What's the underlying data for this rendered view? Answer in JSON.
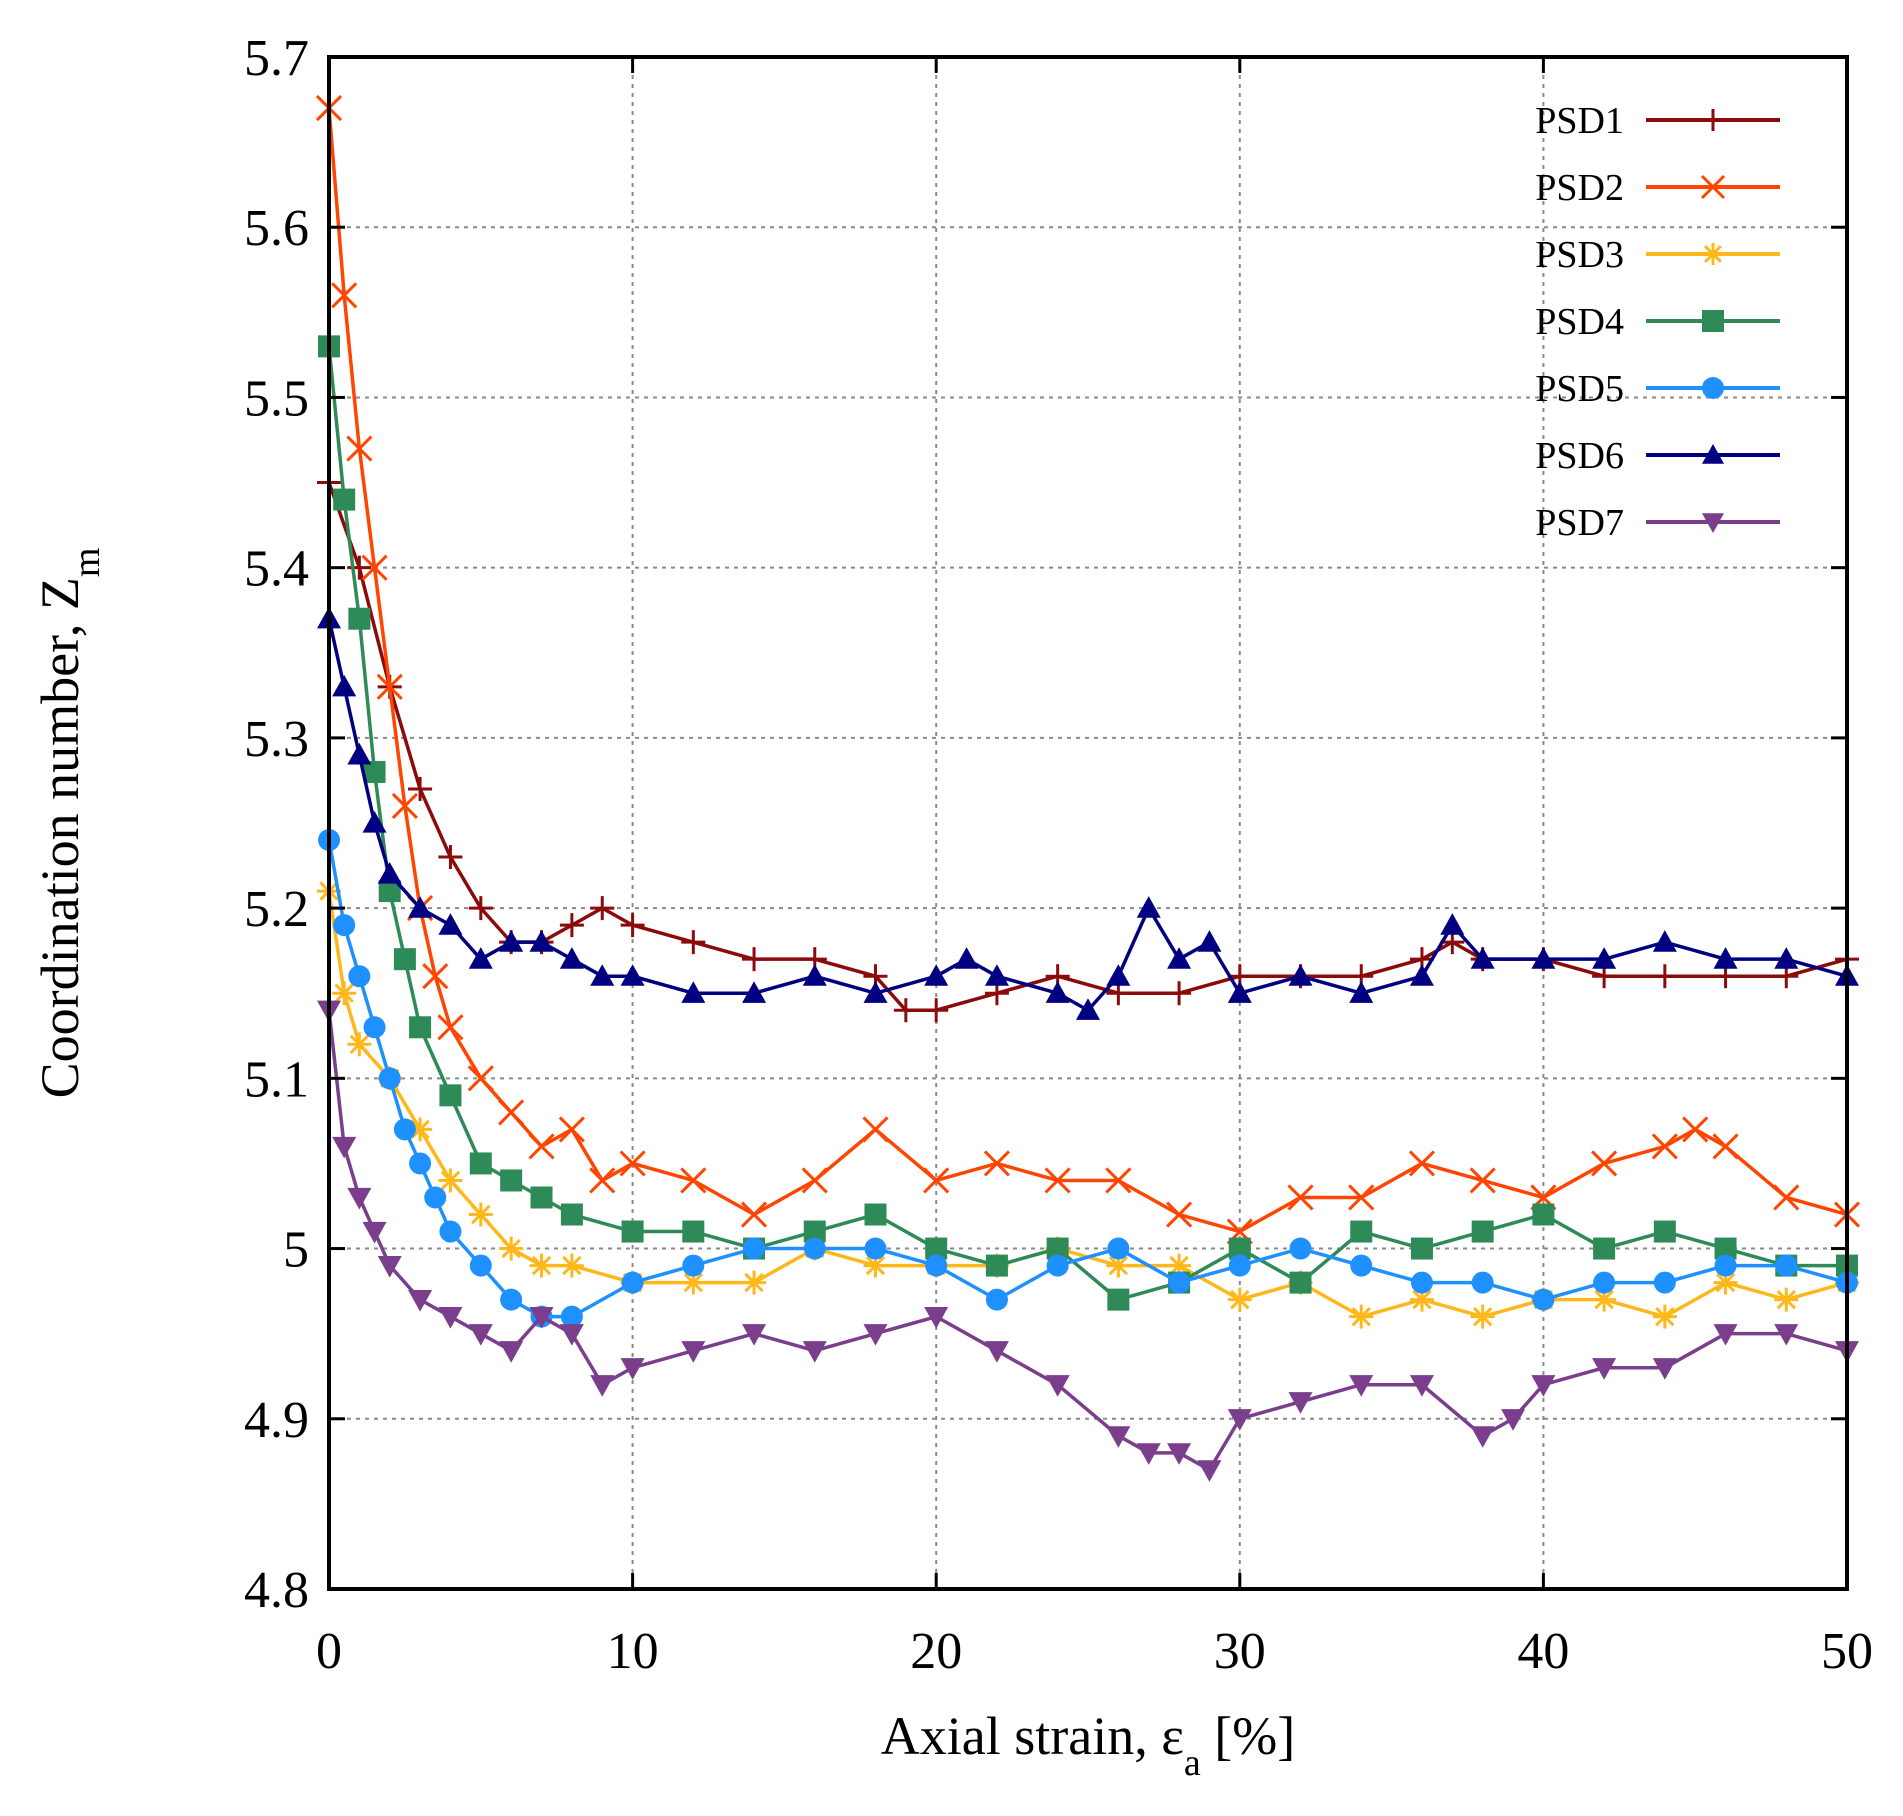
{
  "chart_data": {
    "type": "line",
    "title": "",
    "xlabel": "Axial strain, εa [%]",
    "xlabel_main": "Axial strain, ε",
    "xlabel_sub": "a",
    "xlabel_tail": " [%]",
    "ylabel": "Coordination number, Zm",
    "ylabel_main": "Coordination number, Z",
    "ylabel_sub": "m",
    "xlim": [
      0,
      50
    ],
    "ylim": [
      4.8,
      5.7
    ],
    "xticks": [
      0,
      10,
      20,
      30,
      40,
      50
    ],
    "yticks": [
      4.8,
      4.9,
      5.0,
      5.1,
      5.2,
      5.3,
      5.4,
      5.5,
      5.6,
      5.7
    ],
    "xtick_labels": [
      "0",
      "10",
      "20",
      "30",
      "40",
      "50"
    ],
    "ytick_labels": [
      "4.8",
      "4.9",
      "5",
      "5.1",
      "5.2",
      "5.3",
      "5.4",
      "5.5",
      "5.6",
      "5.7"
    ],
    "grid": true,
    "legend_position": "top-right",
    "series": [
      {
        "name": "PSD1",
        "color": "#8b0a0a",
        "marker": "plus",
        "x": [
          0,
          1,
          2,
          3,
          4,
          5,
          6,
          7,
          8,
          9,
          10,
          12,
          14,
          16,
          18,
          19,
          20,
          22,
          24,
          26,
          28,
          30,
          32,
          34,
          36,
          37,
          38,
          40,
          42,
          44,
          46,
          48,
          50
        ],
        "y": [
          5.45,
          5.4,
          5.33,
          5.27,
          5.23,
          5.2,
          5.18,
          5.18,
          5.19,
          5.2,
          5.19,
          5.18,
          5.17,
          5.17,
          5.16,
          5.14,
          5.14,
          5.15,
          5.16,
          5.15,
          5.15,
          5.16,
          5.16,
          5.16,
          5.17,
          5.18,
          5.17,
          5.17,
          5.16,
          5.16,
          5.16,
          5.16,
          5.17
        ]
      },
      {
        "name": "PSD2",
        "color": "#ff4500",
        "marker": "cross",
        "x": [
          0,
          0.5,
          1,
          1.5,
          2,
          2.5,
          3,
          3.5,
          4,
          5,
          6,
          7,
          8,
          9,
          10,
          12,
          14,
          16,
          18,
          20,
          22,
          24,
          26,
          28,
          30,
          32,
          34,
          36,
          38,
          40,
          42,
          44,
          45,
          46,
          48,
          50
        ],
        "y": [
          5.67,
          5.56,
          5.47,
          5.4,
          5.33,
          5.26,
          5.2,
          5.16,
          5.13,
          5.1,
          5.08,
          5.06,
          5.07,
          5.04,
          5.05,
          5.04,
          5.02,
          5.04,
          5.07,
          5.04,
          5.05,
          5.04,
          5.04,
          5.02,
          5.01,
          5.03,
          5.03,
          5.05,
          5.04,
          5.03,
          5.05,
          5.06,
          5.07,
          5.06,
          5.03,
          5.02
        ]
      },
      {
        "name": "PSD3",
        "color": "#ffb81c",
        "marker": "asterisk",
        "x": [
          0,
          0.5,
          1,
          2,
          3,
          4,
          5,
          6,
          7,
          8,
          10,
          12,
          14,
          16,
          18,
          20,
          22,
          24,
          26,
          28,
          30,
          32,
          34,
          36,
          38,
          40,
          42,
          44,
          46,
          48,
          50
        ],
        "y": [
          5.21,
          5.15,
          5.12,
          5.1,
          5.07,
          5.04,
          5.02,
          5.0,
          4.99,
          4.99,
          4.98,
          4.98,
          4.98,
          5.0,
          4.99,
          4.99,
          4.99,
          5.0,
          4.99,
          4.99,
          4.97,
          4.98,
          4.96,
          4.97,
          4.96,
          4.97,
          4.97,
          4.96,
          4.98,
          4.97,
          4.98
        ]
      },
      {
        "name": "PSD4",
        "color": "#2e8b57",
        "marker": "square",
        "x": [
          0,
          0.5,
          1,
          1.5,
          2,
          2.5,
          3,
          4,
          5,
          6,
          7,
          8,
          10,
          12,
          14,
          16,
          18,
          20,
          22,
          24,
          26,
          28,
          30,
          32,
          34,
          36,
          38,
          40,
          42,
          44,
          46,
          48,
          50
        ],
        "y": [
          5.53,
          5.44,
          5.37,
          5.28,
          5.21,
          5.17,
          5.13,
          5.09,
          5.05,
          5.04,
          5.03,
          5.02,
          5.01,
          5.01,
          5.0,
          5.01,
          5.02,
          5.0,
          4.99,
          5.0,
          4.97,
          4.98,
          5.0,
          4.98,
          5.01,
          5.0,
          5.01,
          5.02,
          5.0,
          5.01,
          5.0,
          4.99,
          4.99
        ]
      },
      {
        "name": "PSD5",
        "color": "#1e90ff",
        "marker": "circle",
        "x": [
          0,
          0.5,
          1,
          1.5,
          2,
          2.5,
          3,
          3.5,
          4,
          5,
          6,
          7,
          8,
          10,
          12,
          14,
          16,
          18,
          20,
          22,
          24,
          26,
          28,
          30,
          32,
          34,
          36,
          38,
          40,
          42,
          44,
          46,
          48,
          50
        ],
        "y": [
          5.24,
          5.19,
          5.16,
          5.13,
          5.1,
          5.07,
          5.05,
          5.03,
          5.01,
          4.99,
          4.97,
          4.96,
          4.96,
          4.98,
          4.99,
          5.0,
          5.0,
          5.0,
          4.99,
          4.97,
          4.99,
          5.0,
          4.98,
          4.99,
          5.0,
          4.99,
          4.98,
          4.98,
          4.97,
          4.98,
          4.98,
          4.99,
          4.99,
          4.98
        ]
      },
      {
        "name": "PSD6",
        "color": "#000080",
        "marker": "triangle-up",
        "x": [
          0,
          0.5,
          1,
          1.5,
          2,
          3,
          4,
          5,
          6,
          7,
          8,
          9,
          10,
          12,
          14,
          16,
          18,
          20,
          21,
          22,
          24,
          25,
          26,
          27,
          28,
          29,
          30,
          32,
          34,
          36,
          37,
          38,
          40,
          42,
          44,
          46,
          48,
          50
        ],
        "y": [
          5.37,
          5.33,
          5.29,
          5.25,
          5.22,
          5.2,
          5.19,
          5.17,
          5.18,
          5.18,
          5.17,
          5.16,
          5.16,
          5.15,
          5.15,
          5.16,
          5.15,
          5.16,
          5.17,
          5.16,
          5.15,
          5.14,
          5.16,
          5.2,
          5.17,
          5.18,
          5.15,
          5.16,
          5.15,
          5.16,
          5.19,
          5.17,
          5.17,
          5.17,
          5.18,
          5.17,
          5.17,
          5.16
        ]
      },
      {
        "name": "PSD7",
        "color": "#7a3e8c",
        "marker": "triangle-down",
        "x": [
          0,
          0.5,
          1,
          1.5,
          2,
          3,
          4,
          5,
          6,
          7,
          8,
          9,
          10,
          12,
          14,
          16,
          18,
          20,
          22,
          24,
          26,
          27,
          28,
          29,
          30,
          32,
          34,
          36,
          38,
          39,
          40,
          42,
          44,
          46,
          48,
          50
        ],
        "y": [
          5.14,
          5.06,
          5.03,
          5.01,
          4.99,
          4.97,
          4.96,
          4.95,
          4.94,
          4.96,
          4.95,
          4.92,
          4.93,
          4.94,
          4.95,
          4.94,
          4.95,
          4.96,
          4.94,
          4.92,
          4.89,
          4.88,
          4.88,
          4.87,
          4.9,
          4.91,
          4.92,
          4.92,
          4.89,
          4.9,
          4.92,
          4.93,
          4.93,
          4.95,
          4.95,
          4.94
        ]
      }
    ]
  }
}
